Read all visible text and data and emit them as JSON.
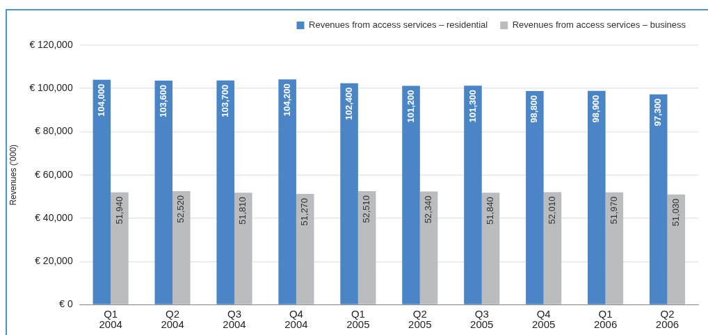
{
  "chart_data": {
    "type": "bar",
    "ylabel": "Revenues ('000)",
    "categories": [
      "Q1 2004",
      "Q2 2004",
      "Q3 2004",
      "Q4 2004",
      "Q1 2005",
      "Q2 2005",
      "Q3 2005",
      "Q4 2005",
      "Q1 2006",
      "Q2 2006"
    ],
    "series": [
      {
        "name": "Revenues from access services – residential",
        "color": "#4a86c5",
        "values": [
          104000,
          103600,
          103700,
          104200,
          102400,
          101200,
          101300,
          98800,
          98900,
          97300
        ],
        "value_labels": [
          "104,000",
          "103,600",
          "103,700",
          "104,200",
          "102,400",
          "101,200",
          "101,300",
          "98,800",
          "98,900",
          "97,300"
        ]
      },
      {
        "name": "Revenues from access services – business",
        "color": "#bbbcc0",
        "values": [
          51940,
          52520,
          51810,
          51270,
          52510,
          52340,
          51840,
          52010,
          51970,
          51030
        ],
        "value_labels": [
          "51,940",
          "52,520",
          "51,810",
          "51,270",
          "52,510",
          "52,340",
          "51,840",
          "52,010",
          "51,970",
          "51,030"
        ]
      }
    ],
    "ylim": [
      0,
      120000
    ],
    "yticks": [
      {
        "value": 0,
        "label": "€ 0"
      },
      {
        "value": 20000,
        "label": "€ 20,000"
      },
      {
        "value": 40000,
        "label": "€ 40,000"
      },
      {
        "value": 60000,
        "label": "€ 60,000"
      },
      {
        "value": 80000,
        "label": "€ 80,000"
      },
      {
        "value": 100000,
        "label": "€ 100,000"
      },
      {
        "value": 120000,
        "label": "€ 120,000"
      }
    ],
    "grid": "y",
    "legend": "top right"
  }
}
